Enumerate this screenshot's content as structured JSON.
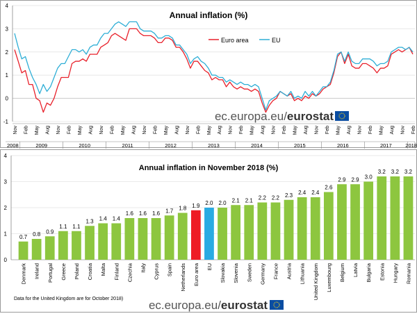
{
  "watermark": {
    "prefix": "ec.europa.eu/",
    "brand": "eurostat"
  },
  "chart_data": [
    {
      "type": "line",
      "title": "Annual inflation (%)",
      "ylim": [
        -1,
        4
      ],
      "yticks": [
        "4",
        "3",
        "2",
        "1",
        "0",
        "-1"
      ],
      "legend": "top-center",
      "month_labels": [
        "Nov",
        "Feb",
        "May",
        "Aug",
        "Nov",
        "Feb",
        "May",
        "Aug",
        "Nov",
        "Feb",
        "May",
        "Aug",
        "Nov",
        "Feb",
        "May",
        "Aug",
        "Nov",
        "Feb",
        "May",
        "Aug",
        "Nov",
        "Feb",
        "May",
        "Aug",
        "Nov",
        "Feb",
        "May",
        "Aug",
        "Nov",
        "Feb",
        "May",
        "Aug",
        "Nov",
        "Feb",
        "May",
        "Aug",
        "Nov",
        "Feb",
        "May",
        "Aug",
        "Nov",
        "Feb",
        "May",
        "Aug",
        "Nov"
      ],
      "years": [
        "2008",
        "2009",
        "2010",
        "2011",
        "2012",
        "2013",
        "2014",
        "2015",
        "2016",
        "2017",
        "2018"
      ],
      "series": [
        {
          "name": "Euro area",
          "color": "#e8202a",
          "values": [
            2.1,
            1.6,
            1.1,
            1.2,
            0.6,
            0.6,
            0.0,
            -0.1,
            -0.6,
            -0.2,
            -0.3,
            0.0,
            0.5,
            0.9,
            0.9,
            0.9,
            1.5,
            1.6,
            1.6,
            1.7,
            1.6,
            1.9,
            1.9,
            1.9,
            2.2,
            2.3,
            2.4,
            2.7,
            2.8,
            2.7,
            2.6,
            2.5,
            3.0,
            3.0,
            3.0,
            2.8,
            2.7,
            2.7,
            2.7,
            2.6,
            2.4,
            2.4,
            2.6,
            2.6,
            2.5,
            2.2,
            2.2,
            2.0,
            1.7,
            1.3,
            1.6,
            1.6,
            1.4,
            1.2,
            1.1,
            0.8,
            0.9,
            0.8,
            0.8,
            0.5,
            0.7,
            0.5,
            0.4,
            0.5,
            0.4,
            0.4,
            0.3,
            0.4,
            0.3,
            -0.2,
            -0.6,
            -0.3,
            -0.1,
            0.0,
            0.3,
            0.2,
            0.1,
            0.2,
            -0.1,
            0.0,
            -0.1,
            0.1,
            0.0,
            0.2,
            0.1,
            0.2,
            0.4,
            0.5,
            0.6,
            1.1,
            1.8,
            2.0,
            1.5,
            1.9,
            1.4,
            1.3,
            1.3,
            1.5,
            1.5,
            1.4,
            1.3,
            1.1,
            1.3,
            1.3,
            1.4,
            1.9,
            2.0,
            2.1,
            2.0,
            2.1,
            2.2,
            1.9
          ]
        },
        {
          "name": "EU",
          "color": "#2eaed6",
          "values": [
            2.8,
            2.2,
            1.7,
            1.8,
            1.3,
            0.9,
            0.6,
            0.2,
            0.6,
            0.3,
            0.5,
            0.9,
            1.3,
            1.5,
            1.5,
            1.8,
            2.1,
            2.1,
            2.0,
            2.1,
            1.9,
            2.2,
            2.3,
            2.3,
            2.6,
            2.8,
            2.8,
            3.0,
            3.2,
            3.3,
            3.2,
            3.1,
            3.3,
            3.3,
            3.3,
            3.0,
            2.9,
            2.9,
            2.9,
            2.8,
            2.6,
            2.6,
            2.7,
            2.7,
            2.6,
            2.3,
            2.3,
            2.1,
            1.9,
            1.5,
            1.7,
            1.8,
            1.6,
            1.5,
            1.3,
            1.0,
            1.0,
            0.9,
            0.9,
            0.7,
            0.8,
            0.7,
            0.6,
            0.7,
            0.6,
            0.6,
            0.5,
            0.6,
            0.5,
            0.0,
            -0.5,
            -0.1,
            0.0,
            0.1,
            0.3,
            0.2,
            0.1,
            0.3,
            0.0,
            0.1,
            0.0,
            0.3,
            0.1,
            0.3,
            0.1,
            0.3,
            0.5,
            0.5,
            0.7,
            1.2,
            1.9,
            2.0,
            1.6,
            2.0,
            1.6,
            1.5,
            1.5,
            1.7,
            1.7,
            1.7,
            1.6,
            1.4,
            1.5,
            1.5,
            1.6,
            2.0,
            2.1,
            2.2,
            2.2,
            2.1,
            2.2,
            2.0
          ]
        }
      ]
    },
    {
      "type": "bar",
      "title": "Annual inflation in November 2018 (%)",
      "ylim": [
        0,
        4
      ],
      "yticks": [
        "4",
        "3",
        "2",
        "1",
        "0"
      ],
      "categories": [
        "Denmark",
        "Ireland",
        "Portugal",
        "Greece",
        "Poland",
        "Croatia",
        "Malta",
        "Finland",
        "Czechia",
        "Italy",
        "Cyprus",
        "Spain",
        "Netherlands",
        "Euro area",
        "EU",
        "Slovakia",
        "Slovenia",
        "Sweden",
        "Germany",
        "France",
        "Austria",
        "Lithuania",
        "United Kingdom",
        "Luxembourg",
        "Belgium",
        "Latvia",
        "Bulgaria",
        "Estonia",
        "Hungary",
        "Romania"
      ],
      "values": [
        0.7,
        0.8,
        0.9,
        1.1,
        1.1,
        1.3,
        1.4,
        1.4,
        1.6,
        1.6,
        1.6,
        1.7,
        1.8,
        1.9,
        2.0,
        2.0,
        2.1,
        2.1,
        2.2,
        2.2,
        2.3,
        2.4,
        2.4,
        2.6,
        2.9,
        2.9,
        3.0,
        3.2,
        3.2,
        3.2
      ],
      "value_labels": [
        "0.7",
        "0.8",
        "0.9",
        "1.1",
        "1.1",
        "1.3",
        "1.4",
        "1.4",
        "1.6",
        "1.6",
        "1.6",
        "1.7",
        "1.8",
        "1.9",
        "2.0",
        "2.0",
        "2.1",
        "2.1",
        "2.2",
        "2.2",
        "2.3",
        "2.4",
        "2.4",
        "2.6",
        "2.9",
        "2.9",
        "3.0",
        "3.2",
        "3.2",
        "3.2"
      ],
      "colors": {
        "default": "#8dc63f",
        "Euro area": "#ee1c25",
        "EU": "#29abe2"
      },
      "note": "Data for the United Kingdom are for October 2018)"
    }
  ]
}
